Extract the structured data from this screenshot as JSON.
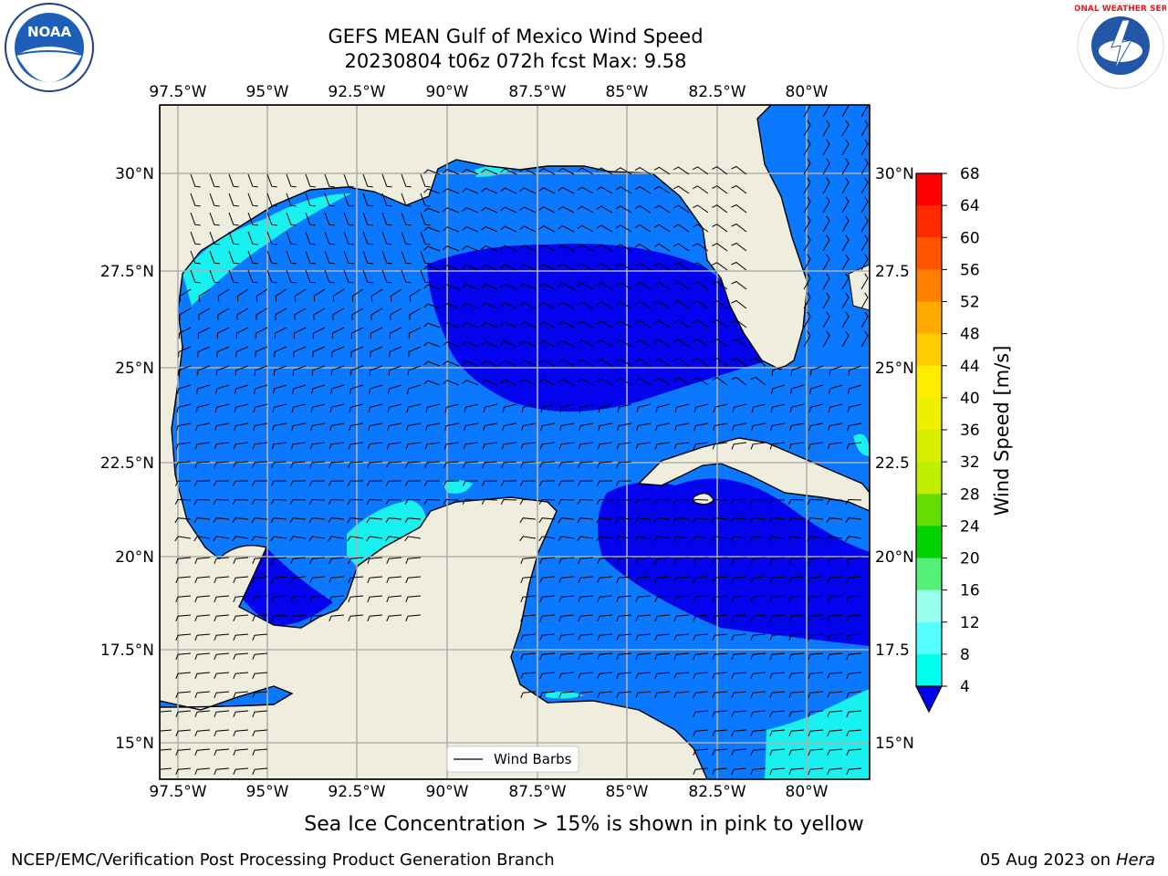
{
  "title_line1": "GEFS MEAN Gulf of Mexico Wind Speed",
  "title_line2": "20230804 t06z 072h fcst   Max: 9.58",
  "lon_labels": [
    "97.5°W",
    "95°W",
    "92.5°W",
    "90°W",
    "87.5°W",
    "85°W",
    "82.5°W",
    "80°W"
  ],
  "lat_labels_left": [
    "30°N",
    "27.5°N",
    "25°N",
    "22.5°N",
    "20°N",
    "17.5°N",
    "15°N"
  ],
  "lat_labels_right": [
    "30°N",
    "27.5",
    "25°N",
    "22.5",
    "20°N",
    "17.5",
    "15°N"
  ],
  "legend_label": "Wind Barbs",
  "colorbar": {
    "label": "Wind Speed [m/s]",
    "ticks": [
      "68",
      "64",
      "60",
      "56",
      "52",
      "48",
      "44",
      "40",
      "36",
      "32",
      "28",
      "24",
      "20",
      "16",
      "12",
      "8",
      "4"
    ],
    "colors": [
      "#ff0000",
      "#ff2a00",
      "#ff5500",
      "#ff8000",
      "#ffaa00",
      "#ffcc00",
      "#ffee00",
      "#f2f500",
      "#dcf000",
      "#c0ee00",
      "#7ee000",
      "#3cd400",
      "#00cc00",
      "#55ee77",
      "#99ffee",
      "#55ffff",
      "#00ffee",
      "#00e5ff",
      "#0080ff"
    ],
    "underflow_color": "#0000ee"
  },
  "map_colors": {
    "land": "#efedde",
    "ocean_4_8": "#0a78ff",
    "ocean_lt4": "#0303ee",
    "ocean_8_12": "#19f0f0"
  },
  "note": "Sea Ice Concentration > 15% is shown in pink to yellow",
  "footer_left": "NCEP/EMC/Verification Post Processing Product Generation Branch",
  "footer_right_prefix": "05 Aug 2023 on",
  "footer_right_machine": "Hera",
  "logos": {
    "noaa": "NOAA",
    "nws": "NATIONAL WEATHER SERVICE"
  }
}
